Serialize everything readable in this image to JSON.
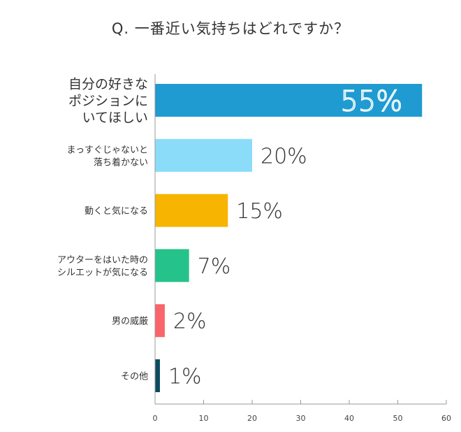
{
  "chart_data": {
    "type": "bar",
    "orientation": "horizontal",
    "title": "Q. 一番近い気持ちはどれですか？",
    "xlim": [
      0,
      60
    ],
    "xticks": [
      0,
      10,
      20,
      30,
      40,
      50,
      60
    ],
    "grid": false,
    "legend": "none",
    "categories": [
      [
        "自分の好きな",
        "ポジションに",
        "いてほしい"
      ],
      [
        "まっすぐじゃないと",
        "落ち着かない"
      ],
      [
        "動くと気になる"
      ],
      [
        "アウターをはいた時の",
        "シルエットが気になる"
      ],
      [
        "男の威厳"
      ],
      [
        "その他"
      ]
    ],
    "values": [
      55,
      20,
      15,
      7,
      2,
      1
    ],
    "value_labels": [
      "55%",
      "20%",
      "15%",
      "7%",
      "2%",
      "1%"
    ],
    "colors": [
      "#1f9bd1",
      "#8adcf8",
      "#f7b400",
      "#26c28b",
      "#f9656b",
      "#0d4a60"
    ]
  }
}
